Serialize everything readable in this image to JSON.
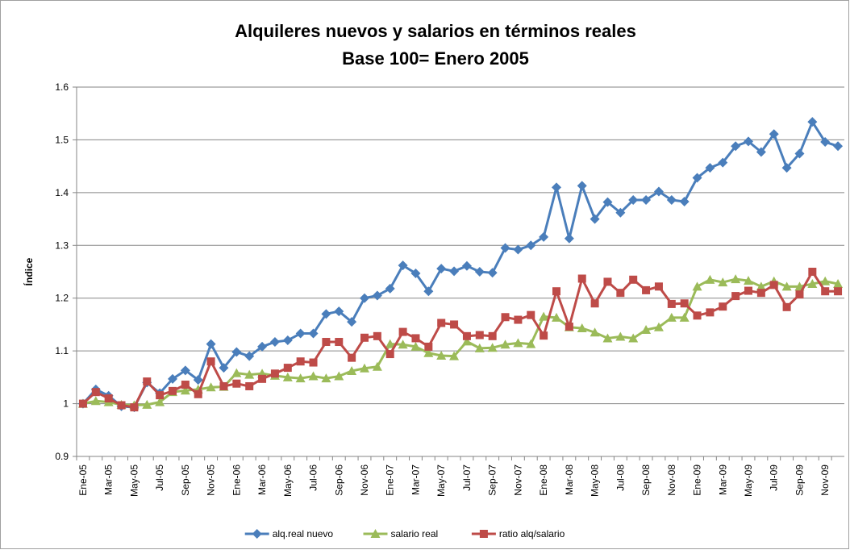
{
  "chart_data": {
    "type": "line",
    "title": "Alquileres nuevos y salarios en términos reales",
    "subtitle": "Base 100= Enero 2005",
    "y_label": "Índice",
    "categories": [
      "Ene-05",
      null,
      "Mar-05",
      null,
      "May-05",
      null,
      "Jul-05",
      null,
      "Sep-05",
      null,
      "Nov-05",
      null,
      "Ene-06",
      null,
      "Mar-06",
      null,
      "May-06",
      null,
      "Jul-06",
      null,
      "Sep-06",
      null,
      "Nov-06",
      null,
      "Ene-07",
      null,
      "Mar-07",
      null,
      "May-07",
      null,
      "Jul-07",
      null,
      "Sep-07",
      null,
      "Nov-07",
      null,
      "Ene-08",
      null,
      "Mar-08",
      null,
      "May-08",
      null,
      "Jul-08",
      null,
      "Sep-08",
      null,
      "Nov-08",
      null,
      "Ene-09",
      null,
      "Mar-09",
      null,
      "May-09",
      null,
      "Jul-09",
      null,
      "Sep-09",
      null,
      "Nov-09",
      null
    ],
    "series": [
      {
        "name": "alq.real nuevo",
        "color": "#4a7ebb",
        "marker": "diamond",
        "values": [
          1.0,
          1.027,
          1.015,
          0.995,
          0.993,
          1.04,
          1.02,
          1.047,
          1.063,
          1.045,
          1.113,
          1.068,
          1.098,
          1.09,
          1.108,
          1.117,
          1.12,
          1.133,
          1.133,
          1.17,
          1.175,
          1.155,
          1.2,
          1.205,
          1.218,
          1.262,
          1.247,
          1.213,
          1.256,
          1.251,
          1.261,
          1.25,
          1.248,
          1.295,
          1.292,
          1.3,
          1.316,
          1.41,
          1.313,
          1.413,
          1.35,
          1.382,
          1.362,
          1.386,
          1.386,
          1.402,
          1.386,
          1.383,
          1.428,
          1.447,
          1.457,
          1.488,
          1.497,
          1.477,
          1.511,
          1.447,
          1.474,
          1.534,
          1.496,
          1.488
        ]
      },
      {
        "name": "salario real",
        "color": "#9bbb59",
        "marker": "triangle",
        "values": [
          1.0,
          1.005,
          1.003,
          0.998,
          0.997,
          0.998,
          1.003,
          1.022,
          1.025,
          1.027,
          1.031,
          1.032,
          1.058,
          1.055,
          1.057,
          1.053,
          1.05,
          1.048,
          1.052,
          1.048,
          1.052,
          1.062,
          1.067,
          1.07,
          1.113,
          1.112,
          1.108,
          1.096,
          1.091,
          1.09,
          1.118,
          1.105,
          1.106,
          1.112,
          1.115,
          1.113,
          1.165,
          1.163,
          1.145,
          1.143,
          1.135,
          1.124,
          1.127,
          1.124,
          1.14,
          1.145,
          1.163,
          1.163,
          1.222,
          1.235,
          1.23,
          1.236,
          1.233,
          1.222,
          1.232,
          1.222,
          1.222,
          1.227,
          1.232,
          1.227
        ]
      },
      {
        "name": "ratio alq/salario",
        "color": "#be4b48",
        "marker": "square",
        "values": [
          1.0,
          1.022,
          1.01,
          0.997,
          0.993,
          1.042,
          1.016,
          1.024,
          1.036,
          1.018,
          1.08,
          1.033,
          1.038,
          1.033,
          1.047,
          1.057,
          1.068,
          1.08,
          1.078,
          1.117,
          1.117,
          1.087,
          1.125,
          1.128,
          1.094,
          1.136,
          1.124,
          1.108,
          1.153,
          1.15,
          1.128,
          1.13,
          1.128,
          1.164,
          1.159,
          1.168,
          1.129,
          1.213,
          1.146,
          1.237,
          1.19,
          1.231,
          1.21,
          1.235,
          1.215,
          1.222,
          1.189,
          1.19,
          1.167,
          1.173,
          1.184,
          1.204,
          1.214,
          1.21,
          1.225,
          1.183,
          1.207,
          1.25,
          1.213,
          1.213
        ]
      }
    ],
    "ylim": [
      0.9,
      1.6
    ],
    "yticks": [
      0.9,
      1,
      1.1,
      1.2,
      1.3,
      1.4,
      1.5,
      1.6
    ],
    "grid": true,
    "legend": "bottom"
  }
}
